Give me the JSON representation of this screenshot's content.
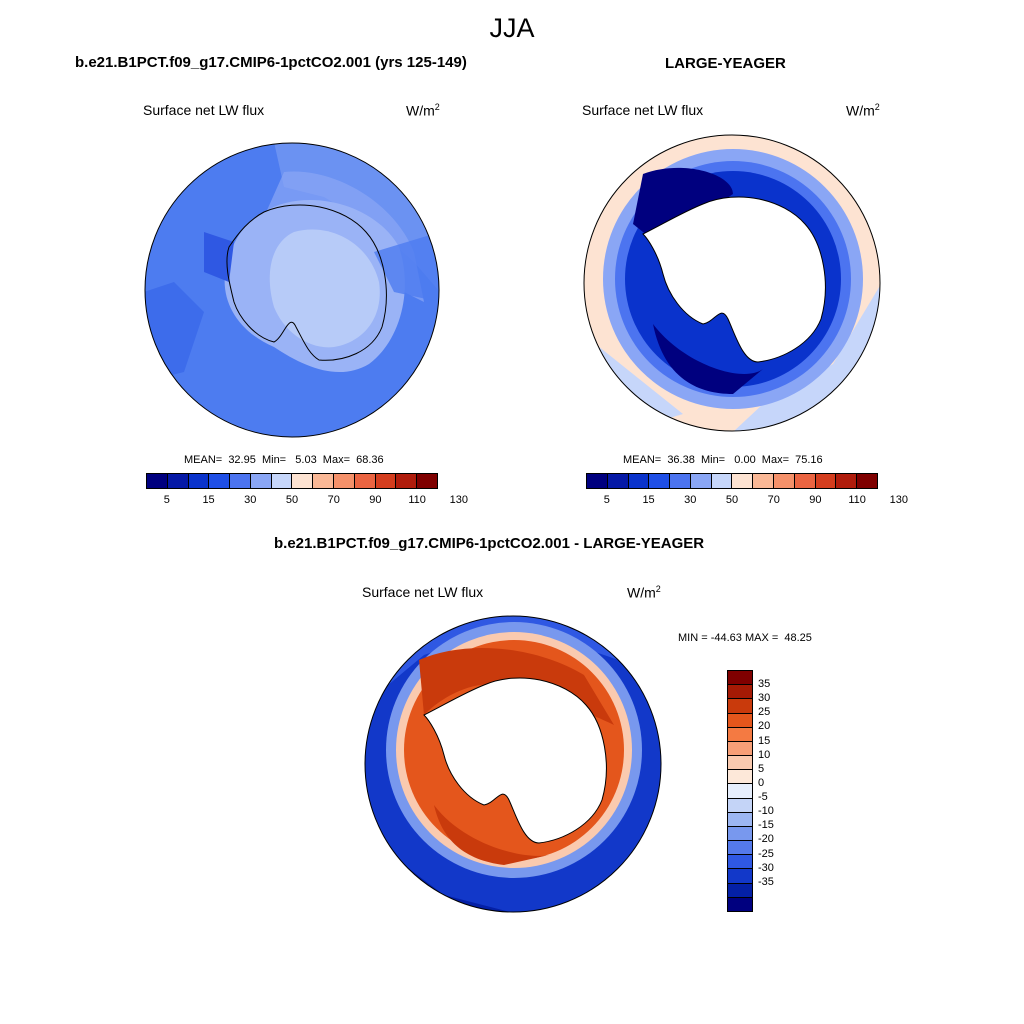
{
  "title": "JJA",
  "panels": {
    "model": {
      "title": "b.e21.B1PCT.f09_g17.CMIP6-1pctCO2.001 (yrs 125-149)",
      "variable": "Surface net LW flux",
      "units": "W/m",
      "units_exp": "2",
      "stats": "MEAN=  32.95  Min=   5.03  Max=  68.36",
      "mean": 32.95,
      "min": 5.03,
      "max": 68.36
    },
    "obs": {
      "title": "LARGE-YEAGER",
      "variable": "Surface net LW flux",
      "units": "W/m",
      "units_exp": "2",
      "stats": "MEAN=  36.38  Min=   0.00  Max=  75.16",
      "mean": 36.38,
      "min": 0.0,
      "max": 75.16
    },
    "diff": {
      "title": "b.e21.B1PCT.f09_g17.CMIP6-1pctCO2.001 - LARGE-YEAGER",
      "variable": "Surface net LW flux",
      "units": "W/m",
      "units_exp": "2",
      "stats": "MIN = -44.63 MAX =  48.25",
      "min": -44.63,
      "max": 48.25
    }
  },
  "colorbar_abs": {
    "colors": [
      "#00007f",
      "#0519a6",
      "#0a33cc",
      "#1f4fe6",
      "#4c74f0",
      "#8aa6f5",
      "#c6d6fa",
      "#fde3d2",
      "#fab896",
      "#f5916a",
      "#eb6441",
      "#d43d1e",
      "#b01c0c",
      "#7f0000"
    ],
    "tick_labels": [
      "5",
      "15",
      "30",
      "50",
      "70",
      "90",
      "110",
      "130"
    ]
  },
  "colorbar_diff": {
    "colors": [
      "#7f0000",
      "#a51a05",
      "#c93a0c",
      "#e4561c",
      "#f47a42",
      "#f79f77",
      "#facaaf",
      "#fde8d9",
      "#e6eefc",
      "#c4d4f7",
      "#9cb6f2",
      "#7898ee",
      "#5479ea",
      "#2f58e3",
      "#1238c9",
      "#0420a6",
      "#00007f"
    ],
    "tick_labels": [
      "35",
      "30",
      "25",
      "20",
      "15",
      "10",
      "5",
      "0",
      "-5",
      "-10",
      "-15",
      "-20",
      "-25",
      "-30",
      "-35"
    ]
  },
  "map_colors": {
    "land_outline": "#000000",
    "land_fill": "#ffffff"
  }
}
